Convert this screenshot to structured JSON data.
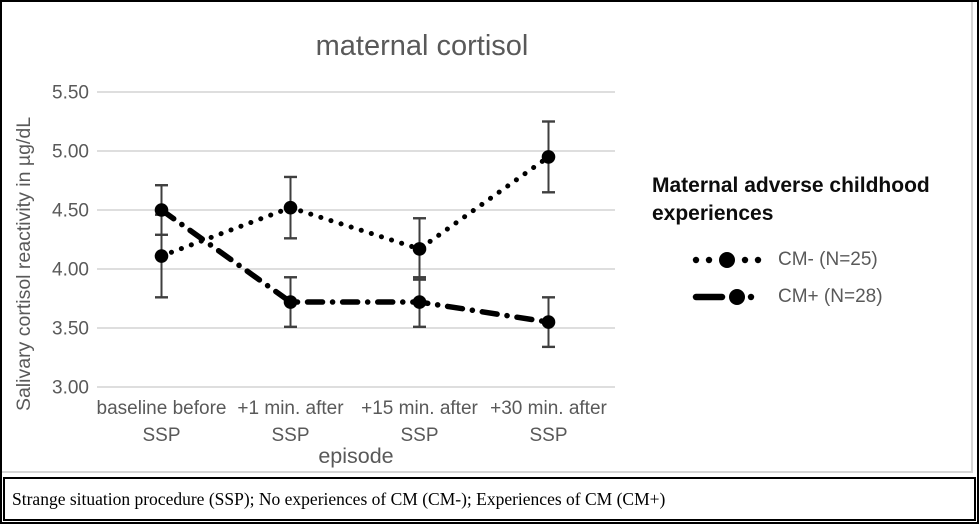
{
  "colors": {
    "series": "#000000",
    "error_bar": "#3f3f3f",
    "gridline": "#d9d9d9",
    "axis_text": "#595959",
    "title_text": "#595959",
    "legend_label": "#595959",
    "legend_title": "#0d0d0d"
  },
  "chart_data": {
    "type": "line",
    "title": "maternal cortisol",
    "categories": [
      "baseline before SSP",
      "+1 min. after SSP",
      "+15 min. after SSP",
      "+30 min. after SSP"
    ],
    "series": [
      {
        "name": "CM- (N=25)",
        "line_style": "dotted",
        "values": [
          4.11,
          4.52,
          4.17,
          4.95
        ],
        "error_bars": [
          0.35,
          0.26,
          0.26,
          0.3
        ]
      },
      {
        "name": "CM+ (N=28)",
        "line_style": "dash-dot",
        "values": [
          4.5,
          3.72,
          3.72,
          3.55
        ],
        "error_bars": [
          0.21,
          0.21,
          0.21,
          0.21
        ]
      }
    ],
    "xlabel": "episode",
    "ylabel": "Salivary cortisol reactivity in µg/dL",
    "ylim": [
      3.0,
      5.5
    ],
    "ytick_step": 0.5,
    "yticks": [
      "5.50",
      "5.00",
      "4.50",
      "4.00",
      "3.50",
      "3.00"
    ],
    "grid": "horizontal",
    "legend_title": "Maternal adverse childhood experiences",
    "legend_position": "right"
  },
  "caption": {
    "text": "Strange situation procedure (SSP); No experiences of CM (CM-); Experiences of CM (CM+)"
  }
}
